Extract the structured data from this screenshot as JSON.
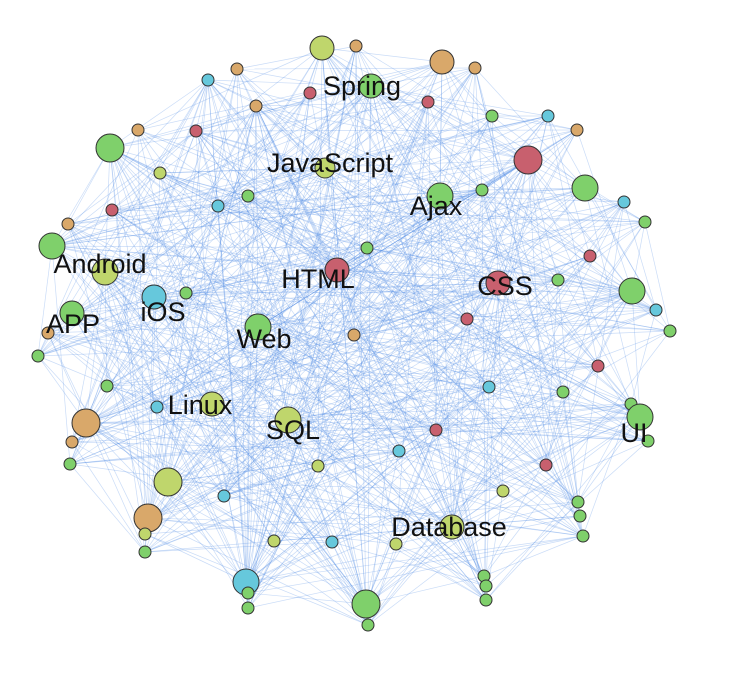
{
  "labels": [
    "Spring",
    "JavaScript",
    "Ajax",
    "Android",
    "HTML",
    "CSS",
    "iOS",
    "APP",
    "Web",
    "Linux",
    "SQL",
    "UI",
    "Database"
  ]
}
